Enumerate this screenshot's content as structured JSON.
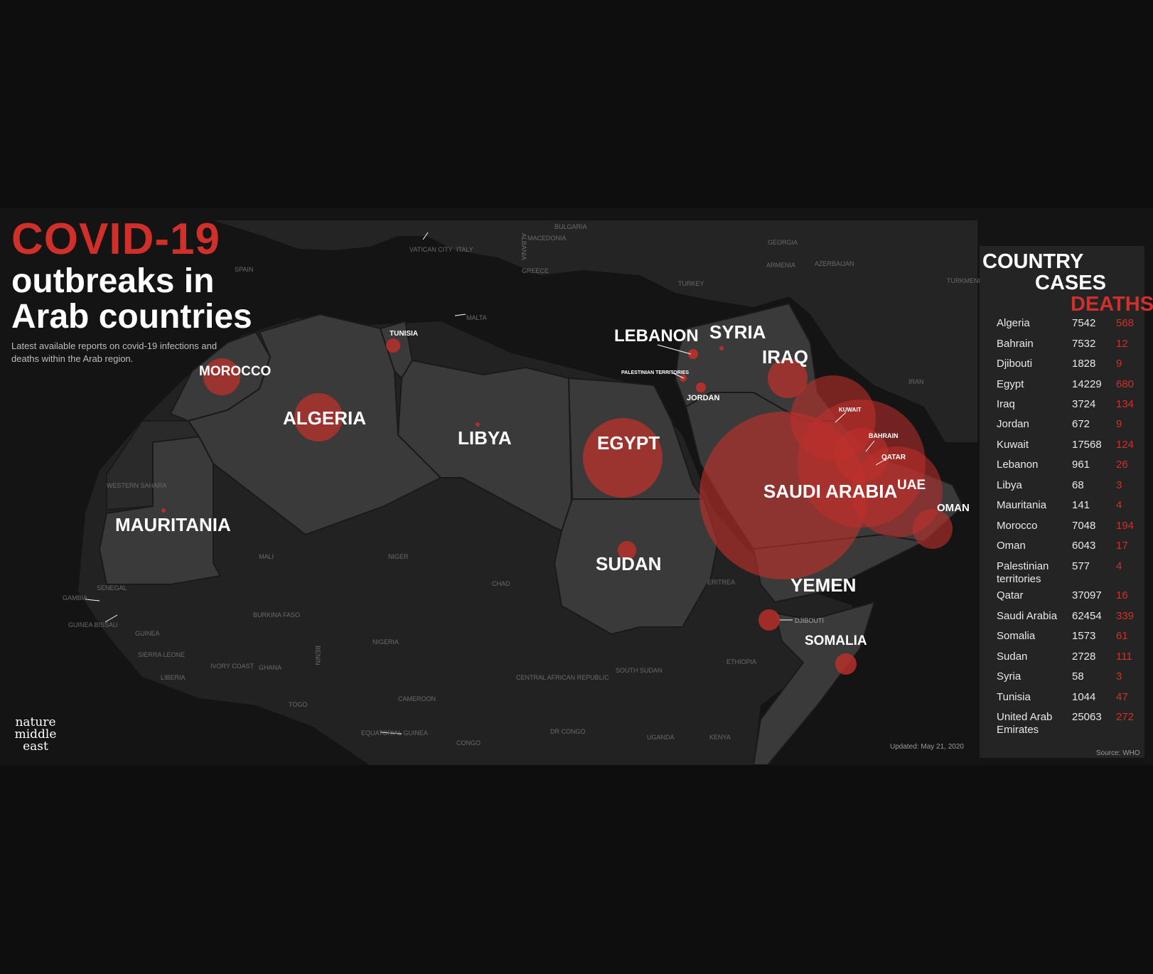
{
  "title": {
    "line1": "COVID-19",
    "line2": "outbreaks in",
    "line3": "Arab countries",
    "subtitle": "Latest available reports on covid-19 infections and deaths within the Arab region."
  },
  "logo": {
    "line1": "nature",
    "line2": "middle",
    "line3": "east"
  },
  "updated": "Updated: May 21, 2020",
  "source": "Source: WHO",
  "colors": {
    "accent_red": "#d12f2a",
    "arab_land": "#3a3a3a",
    "other_land": "#222222",
    "sea": "#141414"
  },
  "table": {
    "headers": {
      "country": "COUNTRY",
      "cases": "CASES",
      "deaths": "DEATHS"
    },
    "rows": [
      {
        "country": "Algeria",
        "cases": "7542",
        "deaths": "568"
      },
      {
        "country": "Bahrain",
        "cases": "7532",
        "deaths": "12"
      },
      {
        "country": "Djibouti",
        "cases": "1828",
        "deaths": "9"
      },
      {
        "country": "Egypt",
        "cases": "14229",
        "deaths": "680"
      },
      {
        "country": "Iraq",
        "cases": "3724",
        "deaths": "134"
      },
      {
        "country": "Jordan",
        "cases": "672",
        "deaths": "9"
      },
      {
        "country": "Kuwait",
        "cases": "17568",
        "deaths": "124"
      },
      {
        "country": "Lebanon",
        "cases": "961",
        "deaths": "26"
      },
      {
        "country": "Libya",
        "cases": "68",
        "deaths": "3"
      },
      {
        "country": "Mauritania",
        "cases": "141",
        "deaths": "4"
      },
      {
        "country": "Morocco",
        "cases": "7048",
        "deaths": "194"
      },
      {
        "country": "Oman",
        "cases": "6043",
        "deaths": "17"
      },
      {
        "country": "Palestinian territories",
        "cases": "577",
        "deaths": "4"
      },
      {
        "country": "Qatar",
        "cases": "37097",
        "deaths": "16"
      },
      {
        "country": "Saudi Arabia",
        "cases": "62454",
        "deaths": "339"
      },
      {
        "country": "Somalia",
        "cases": "1573",
        "deaths": "61"
      },
      {
        "country": "Sudan",
        "cases": "2728",
        "deaths": "111"
      },
      {
        "country": "Syria",
        "cases": "58",
        "deaths": "3"
      },
      {
        "country": "Tunisia",
        "cases": "1044",
        "deaths": "47"
      },
      {
        "country": "United Arab Emirates",
        "cases": "25063",
        "deaths": "272"
      }
    ]
  },
  "map_labels": {
    "arab": [
      "MOROCCO",
      "ALGERIA",
      "LIBYA",
      "EGYPT",
      "MAURITANIA",
      "SUDAN",
      "LEBANON",
      "SYRIA",
      "IRAQ",
      "SAUDI ARABIA",
      "UAE",
      "OMAN",
      "YEMEN",
      "SOMALIA"
    ],
    "small_arab": [
      "TUNISIA",
      "KUWAIT",
      "BAHRAIN",
      "QATAR",
      "JORDAN",
      "PALESTINIAN TERRITORIES",
      "DJIBOUTI"
    ],
    "other": [
      "SPAIN",
      "VATICAN CITY",
      "ITALY",
      "ALBANIA",
      "MACEDONIA",
      "BULGARIA",
      "GREECE",
      "MALTA",
      "GEORGIA",
      "ARMENIA",
      "AZERBAIJAN",
      "TURKEY",
      "TURKMENISTAN",
      "IRAN",
      "WESTERN SAHARA",
      "MALI",
      "NIGER",
      "CHAD",
      "ERITREA",
      "ETHIOPIA",
      "SENEGAL",
      "GAMBIA",
      "GUINEA BISSAU",
      "GUINEA",
      "SIERRA LEONE",
      "LIBERIA",
      "IVORY COAST",
      "GHANA",
      "TOGO",
      "BENIN",
      "BURKINA FASO",
      "NIGERIA",
      "CAMEROON",
      "CENTRAL AFRICAN REPUBLIC",
      "SOUTH SUDAN",
      "DR CONGO",
      "CONGO",
      "UGANDA",
      "KENYA",
      "EQUATORIAL GUINEA"
    ]
  }
}
